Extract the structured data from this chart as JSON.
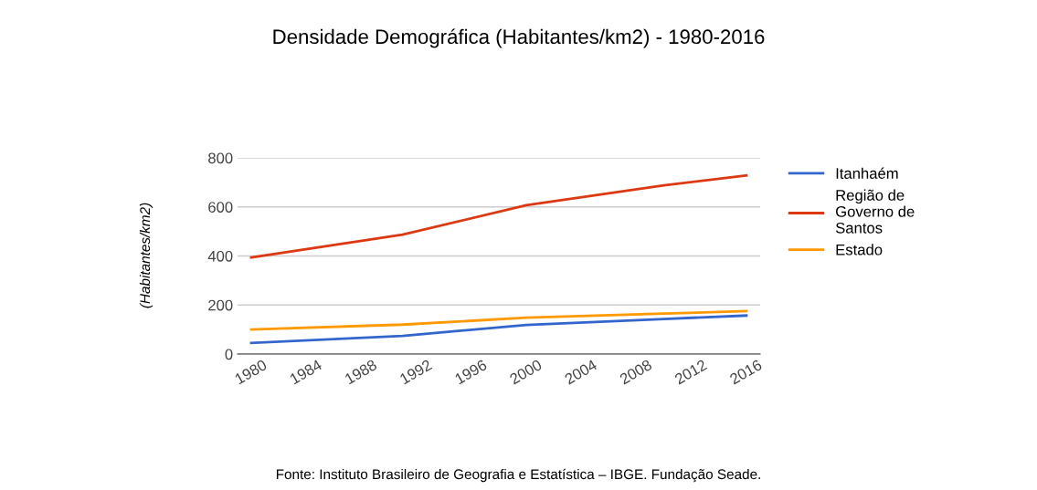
{
  "chart_data": {
    "type": "line",
    "title": "Densidade Demográfica (Habitantes/km2) - 1980-2016",
    "ylabel": "(Habitantes/km2)",
    "annotations": [
      "Fonte: Instituto Brasileiro de Geografia e Estatística – IBGE. Fundação Seade."
    ],
    "x": [
      1980,
      1991,
      2000,
      2010,
      2016
    ],
    "series": [
      {
        "name": "Itanhaém",
        "color": "#3366cc",
        "values": [
          45,
          74,
          119,
          143,
          157
        ]
      },
      {
        "name": "Região de\nGoverno de\nSantos",
        "color": "#dc3912",
        "values": [
          394,
          487,
          607,
          688,
          728
        ]
      },
      {
        "name": "Estado",
        "color": "#ff9900",
        "values": [
          100,
          120,
          148,
          165,
          175
        ]
      }
    ],
    "xlim": [
      1979,
      2017
    ],
    "xticks": [
      1980,
      1984,
      1988,
      1992,
      1996,
      2000,
      2004,
      2008,
      2012,
      2016
    ],
    "ylim": [
      0,
      800
    ],
    "yticks": [
      0,
      200,
      400,
      600,
      800
    ],
    "grid": "y",
    "legend": "right",
    "marker": "none",
    "line_style": "solid"
  }
}
